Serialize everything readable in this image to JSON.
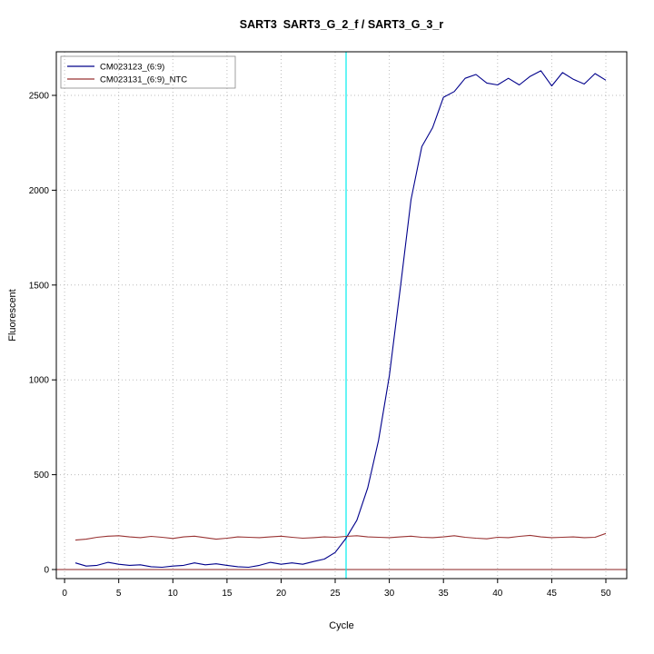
{
  "chart_data": {
    "type": "line",
    "title": "SART3  SART3_G_2_f / SART3_G_3_r",
    "xlabel": "Cycle",
    "ylabel": "Fluorescent",
    "xlim": [
      1,
      50
    ],
    "ylim": [
      0,
      2500
    ],
    "grid": true,
    "legend_position": "top-left",
    "x_ticks": [
      0,
      5,
      10,
      15,
      20,
      25,
      30,
      35,
      40,
      45,
      50
    ],
    "y_ticks": [
      0,
      500,
      1000,
      1500,
      2000,
      2500
    ],
    "x": [
      1,
      2,
      3,
      4,
      5,
      6,
      7,
      8,
      9,
      10,
      11,
      12,
      13,
      14,
      15,
      16,
      17,
      18,
      19,
      20,
      21,
      22,
      23,
      24,
      25,
      26,
      27,
      28,
      29,
      30,
      31,
      32,
      33,
      34,
      35,
      36,
      37,
      38,
      39,
      40,
      41,
      42,
      43,
      44,
      45,
      46,
      47,
      48,
      49,
      50
    ],
    "series": [
      {
        "name": "CM023123_(6:9)",
        "color": "#00008B",
        "values": [
          35,
          18,
          22,
          38,
          28,
          22,
          25,
          15,
          12,
          18,
          22,
          35,
          25,
          30,
          22,
          15,
          12,
          22,
          38,
          28,
          35,
          28,
          42,
          55,
          90,
          165,
          260,
          430,
          680,
          1020,
          1480,
          1950,
          2230,
          2330,
          2490,
          2520,
          2590,
          2610,
          2565,
          2555,
          2590,
          2555,
          2600,
          2630,
          2550,
          2620,
          2585,
          2560,
          2615,
          2580
        ]
      },
      {
        "name": "CM023131_(6:9)_NTC",
        "color": "#993333",
        "values": [
          155,
          160,
          170,
          176,
          178,
          172,
          168,
          175,
          170,
          164,
          172,
          176,
          168,
          160,
          165,
          172,
          170,
          168,
          172,
          176,
          170,
          165,
          168,
          172,
          170,
          175,
          178,
          172,
          170,
          168,
          172,
          176,
          170,
          168,
          172,
          178,
          170,
          165,
          162,
          170,
          168,
          175,
          180,
          172,
          168,
          170,
          172,
          168,
          170,
          190
        ]
      }
    ],
    "threshold_line": {
      "x": 26,
      "color": "#00EEEE"
    },
    "baseline": {
      "y": 0,
      "color": "#8B2222"
    },
    "grid_color": "#bbbbbb",
    "box_color": "#000000"
  }
}
